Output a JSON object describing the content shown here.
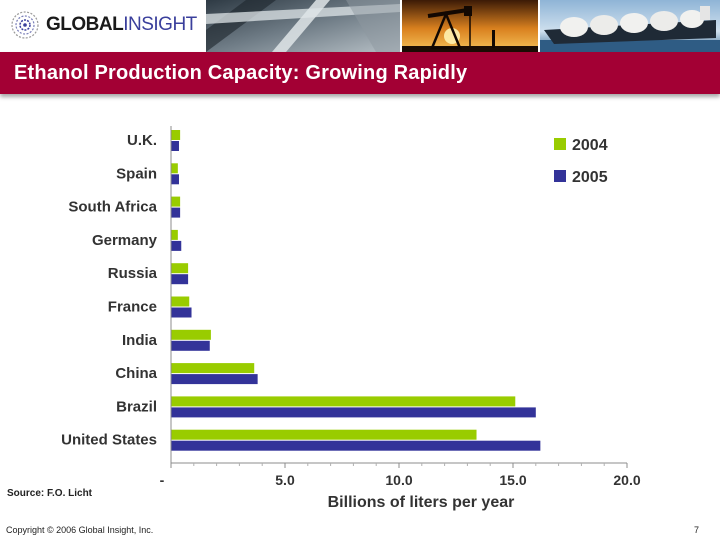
{
  "brand": {
    "logo_part1": "GLOBAL",
    "logo_part2": "INSIGHT"
  },
  "slide": {
    "title": "Ethanol Production Capacity: Growing Rapidly",
    "source": "Source: F.O. Licht",
    "copyright": "Copyright © 2006 Global Insight, Inc.",
    "page_number": "7"
  },
  "colors": {
    "title_bar": "#a30034",
    "series_2004": "#99cc00",
    "series_2005": "#333399"
  },
  "chart_data": {
    "type": "bar",
    "orientation": "horizontal",
    "title": "",
    "xlabel": "Billions of liters per year",
    "ylabel": "",
    "xlim": [
      0,
      20
    ],
    "xticks": [
      0,
      5,
      10,
      15,
      20
    ],
    "xtick_labels": [
      "-",
      "5.0",
      "10.0",
      "15.0",
      "20.0"
    ],
    "categories": [
      "U.K.",
      "Spain",
      "South Africa",
      "Germany",
      "Russia",
      "France",
      "India",
      "China",
      "Brazil",
      "United States"
    ],
    "series": [
      {
        "name": "2004",
        "color": "#99cc00",
        "values": [
          0.4,
          0.3,
          0.4,
          0.3,
          0.75,
          0.8,
          1.75,
          3.65,
          15.1,
          13.4
        ]
      },
      {
        "name": "2005",
        "color": "#333399",
        "values": [
          0.35,
          0.35,
          0.4,
          0.45,
          0.75,
          0.9,
          1.7,
          3.8,
          16.0,
          16.2
        ]
      }
    ],
    "legend_position": "top-right",
    "grid": false
  }
}
